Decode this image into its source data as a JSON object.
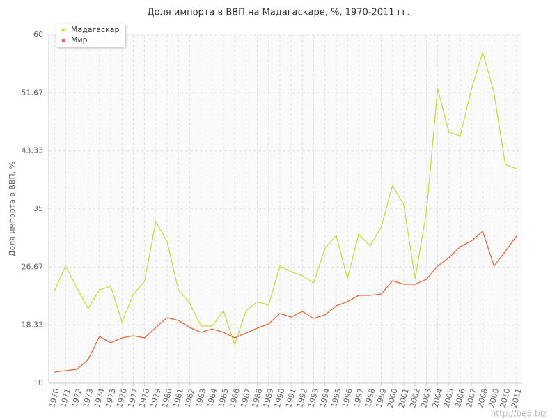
{
  "chart_data": {
    "type": "line",
    "title": "Доля импорта в ВВП на Мадагаскаре, %, 1970-2011 гг.",
    "y_label": "Доля импорта в ВВП, %",
    "watermark": "http://be5.biz",
    "categories": [
      "1970",
      "1971",
      "1972",
      "1973",
      "1974",
      "1975",
      "1976",
      "1977",
      "1978",
      "1979",
      "1980",
      "1981",
      "1982",
      "1983",
      "1984",
      "1985",
      "1986",
      "1987",
      "1988",
      "1989",
      "1990",
      "1991",
      "1992",
      "1993",
      "1994",
      "1995",
      "1996",
      "1997",
      "1998",
      "1999",
      "2000",
      "2001",
      "2002",
      "2003",
      "2004",
      "2005",
      "2006",
      "2007",
      "2008",
      "2009",
      "2010",
      "2011"
    ],
    "series": [
      {
        "name": "Мадагаскар",
        "color": "#c5dc4a",
        "values": [
          23.2,
          26.8,
          23.7,
          20.7,
          23.4,
          23.9,
          18.8,
          22.7,
          24.6,
          33.2,
          30.3,
          23.4,
          21.5,
          18.2,
          18.2,
          20.4,
          15.5,
          20.4,
          21.7,
          21.2,
          26.8,
          26.0,
          25.4,
          24.4,
          29.3,
          31.2,
          25.0,
          31.4,
          29.7,
          32.4,
          38.4,
          35.6,
          25.0,
          34.5,
          52.3,
          46.0,
          45.5,
          52.2,
          57.5,
          51.7,
          41.4,
          40.8
        ]
      },
      {
        "name": "Мир",
        "color": "#e0683c",
        "values": [
          11.6,
          11.8,
          12.0,
          13.4,
          16.7,
          15.8,
          16.5,
          16.8,
          16.5,
          18.0,
          19.4,
          19.0,
          18.0,
          17.3,
          17.8,
          17.3,
          16.5,
          17.2,
          17.9,
          18.5,
          20.0,
          19.5,
          20.3,
          19.3,
          19.8,
          21.1,
          21.7,
          22.6,
          22.6,
          22.8,
          24.7,
          24.2,
          24.2,
          24.9,
          26.8,
          28.0,
          29.6,
          30.4,
          31.8,
          26.8,
          28.9,
          31.1
        ]
      }
    ],
    "ylim": [
      10,
      60
    ],
    "yticks": [
      10,
      18.33,
      26.67,
      35,
      43.33,
      51.67,
      60
    ],
    "grid": true
  }
}
